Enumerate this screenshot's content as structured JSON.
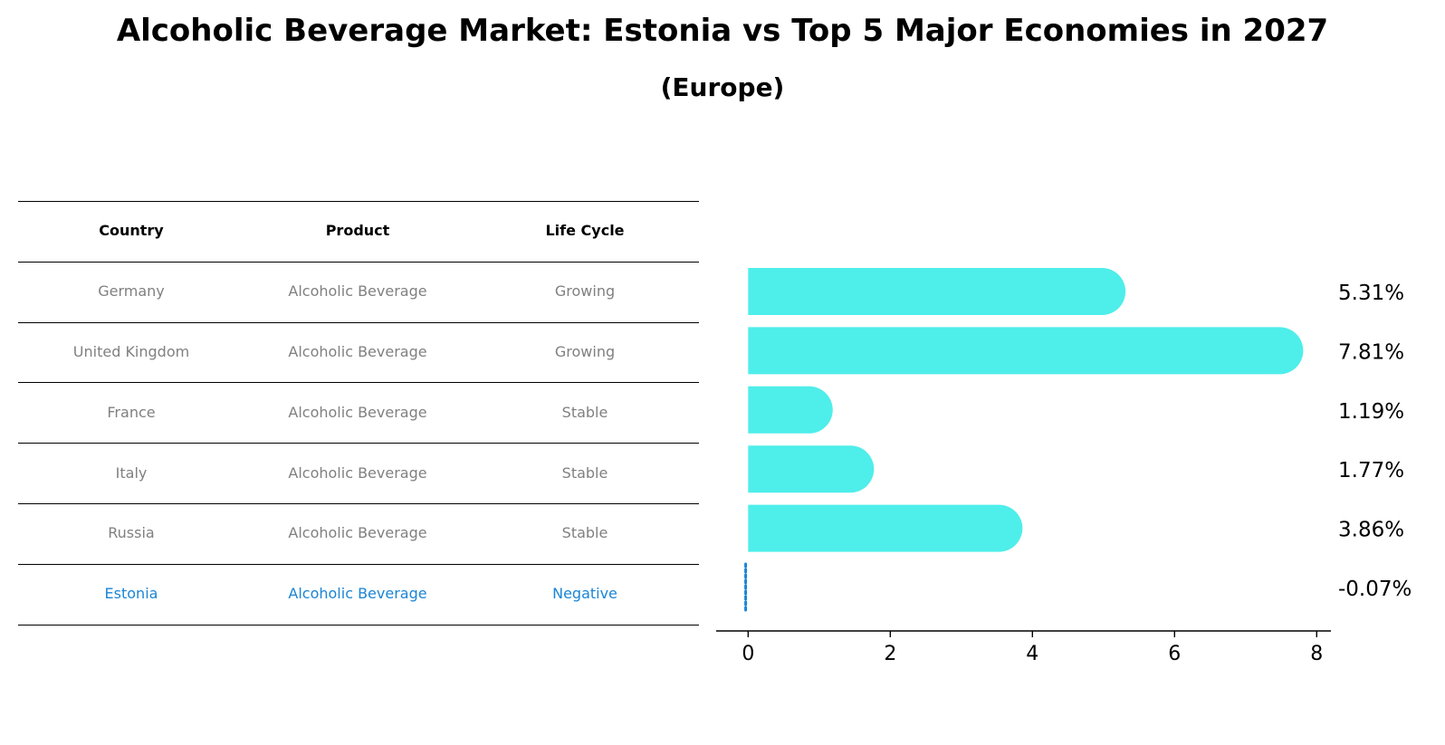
{
  "title": "Alcoholic Beverage Market: Estonia vs Top 5 Major Economies in 2027",
  "subtitle": "(Europe)",
  "table": {
    "headers": [
      "Country",
      "Product",
      "Life Cycle"
    ],
    "rows": [
      [
        "Germany",
        "Alcoholic Beverage",
        "Growing"
      ],
      [
        "United Kingdom",
        "Alcoholic Beverage",
        "Growing"
      ],
      [
        "France",
        "Alcoholic Beverage",
        "Stable"
      ],
      [
        "Italy",
        "Alcoholic Beverage",
        "Stable"
      ],
      [
        "Russia",
        "Alcoholic Beverage",
        "Stable"
      ],
      [
        "Estonia",
        "Alcoholic Beverage",
        "Negative"
      ]
    ],
    "highlight_row": 5,
    "colors": {
      "header": "#000000",
      "normal": "#808080",
      "highlight": "#1a85d6"
    }
  },
  "chart_data": {
    "type": "bar",
    "orientation": "horizontal",
    "categories": [
      "Germany",
      "United Kingdom",
      "France",
      "Italy",
      "Russia",
      "Estonia"
    ],
    "values": [
      5.31,
      7.81,
      1.19,
      1.77,
      3.86,
      -0.07
    ],
    "value_labels": [
      "5.31%",
      "7.81%",
      "1.19%",
      "1.77%",
      "3.86%",
      "-0.07%"
    ],
    "xlim": [
      -0.45,
      8.2
    ],
    "xticks": [
      0,
      2,
      4,
      6,
      8
    ],
    "bar_color": "#4eeeea",
    "highlight_color": "#1a85d6",
    "highlight_index": 5,
    "xlabel": "",
    "ylabel": ""
  }
}
